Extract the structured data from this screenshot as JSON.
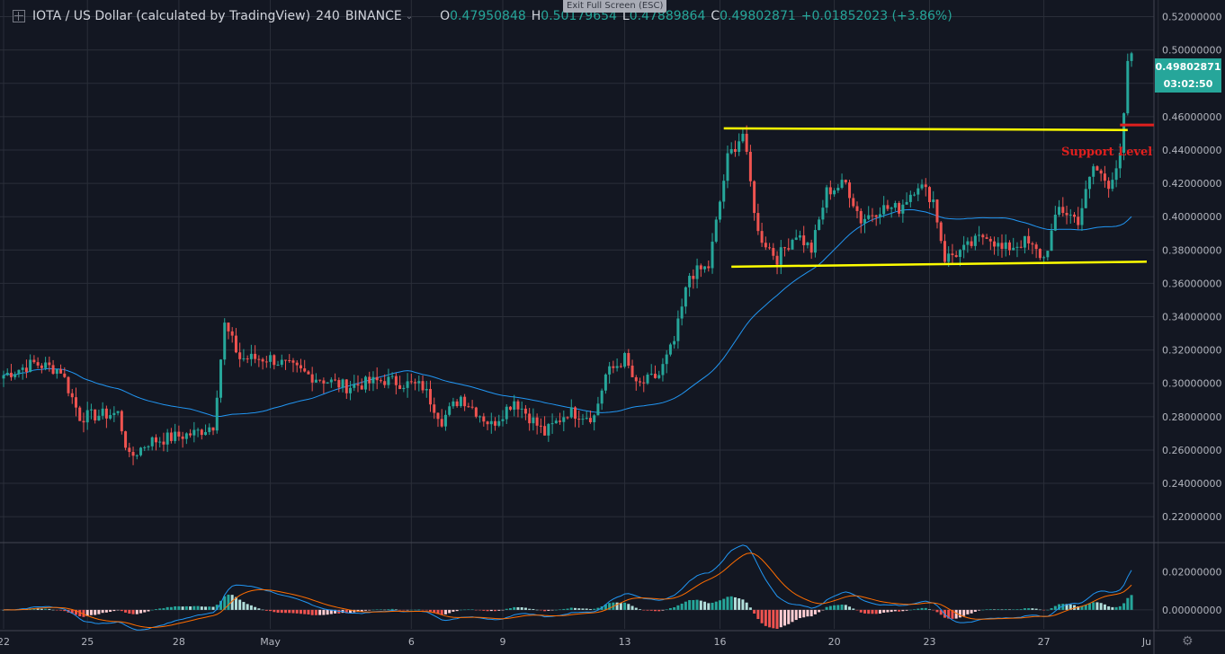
{
  "header": {
    "symbol": "IOTA / US Dollar (calculated by TradingView)",
    "interval": "240",
    "exchange": "BINANCE",
    "open_label": "O",
    "open": "0.47950848",
    "high_label": "H",
    "high": "0.50179654",
    "low_label": "L",
    "low": "0.47889864",
    "close_label": "C",
    "close": "0.49802871",
    "change": "+0.01852023 (+3.86%)"
  },
  "exit_fullscreen": "Exit Full Screen (ESC)",
  "price_tag": {
    "price": "0.49802871",
    "countdown": "03:02:50"
  },
  "annotation": {
    "support_label": "Support Level"
  },
  "colors": {
    "background": "#131722",
    "up": "#26a69a",
    "down": "#ef5350",
    "ma": "#2196f3",
    "trendline": "#ffff00",
    "support": "#e0201e",
    "macd_line": "#2196f3",
    "signal_line": "#ff6d00"
  },
  "chart_data": [
    {
      "type": "candlestick",
      "y_axis": {
        "range": [
          0.205,
          0.53
        ],
        "ticks": [
          "0.52000000",
          "0.50000000",
          "0.48000000",
          "0.46000000",
          "0.44000000",
          "0.42000000",
          "0.40000000",
          "0.38000000",
          "0.36000000",
          "0.34000000",
          "0.32000000",
          "0.30000000",
          "0.28000000",
          "0.26000000",
          "0.24000000",
          "0.22000000"
        ]
      },
      "x_axis": {
        "ticks": [
          "22",
          "25",
          "28",
          "May",
          "6",
          "9",
          "13",
          "16",
          "20",
          "23",
          "27",
          "Ju"
        ]
      },
      "grid": true,
      "series": [
        {
          "kind": "price",
          "waypoints": [
            [
              0,
              0.305
            ],
            [
              8,
              0.312
            ],
            [
              15,
              0.308
            ],
            [
              20,
              0.28
            ],
            [
              30,
              0.282
            ],
            [
              33,
              0.255
            ],
            [
              38,
              0.265
            ],
            [
              50,
              0.27
            ],
            [
              55,
              0.275
            ],
            [
              58,
              0.335
            ],
            [
              62,
              0.315
            ],
            [
              70,
              0.315
            ],
            [
              80,
              0.305
            ],
            [
              90,
              0.298
            ],
            [
              100,
              0.302
            ],
            [
              110,
              0.298
            ],
            [
              115,
              0.278
            ],
            [
              120,
              0.292
            ],
            [
              128,
              0.275
            ],
            [
              134,
              0.29
            ],
            [
              142,
              0.27
            ],
            [
              148,
              0.283
            ],
            [
              155,
              0.28
            ],
            [
              158,
              0.305
            ],
            [
              163,
              0.315
            ],
            [
              166,
              0.298
            ],
            [
              172,
              0.305
            ],
            [
              176,
              0.325
            ],
            [
              180,
              0.365
            ],
            [
              185,
              0.37
            ],
            [
              190,
              0.435
            ],
            [
              194,
              0.45
            ],
            [
              198,
              0.39
            ],
            [
              203,
              0.375
            ],
            [
              208,
              0.39
            ],
            [
              212,
              0.38
            ],
            [
              216,
              0.415
            ],
            [
              221,
              0.42
            ],
            [
              225,
              0.398
            ],
            [
              230,
              0.405
            ],
            [
              235,
              0.405
            ],
            [
              240,
              0.42
            ],
            [
              244,
              0.41
            ],
            [
              247,
              0.375
            ],
            [
              252,
              0.38
            ],
            [
              258,
              0.39
            ],
            [
              262,
              0.38
            ],
            [
              268,
              0.385
            ],
            [
              273,
              0.375
            ],
            [
              277,
              0.405
            ],
            [
              282,
              0.398
            ],
            [
              286,
              0.43
            ],
            [
              290,
              0.42
            ],
            [
              293,
              0.435
            ],
            [
              294,
              0.46
            ],
            [
              295,
              0.49
            ],
            [
              296,
              0.498
            ]
          ],
          "close": 0.49802871
        },
        {
          "kind": "moving-average",
          "color": "#2196f3"
        }
      ],
      "annotations": [
        {
          "type": "trendline",
          "label": "resistance",
          "from": [
            189,
            0.453
          ],
          "to": [
            295,
            0.452
          ]
        },
        {
          "type": "trendline",
          "label": "support",
          "from": [
            191,
            0.37
          ],
          "to": [
            300,
            0.373
          ]
        },
        {
          "type": "hline",
          "label": "Support Level",
          "value": 0.455
        }
      ]
    },
    {
      "type": "macd",
      "y_axis": {
        "range": [
          -0.01,
          0.035
        ],
        "ticks": [
          "0.02000000",
          "0.00000000"
        ]
      },
      "series": [
        {
          "name": "",
          "kind": "histogram"
        },
        {
          "name": "",
          "kind": "macd",
          "color": "#2196f3"
        },
        {
          "name": "",
          "kind": "signal",
          "color": "#ff6d00"
        }
      ]
    }
  ]
}
